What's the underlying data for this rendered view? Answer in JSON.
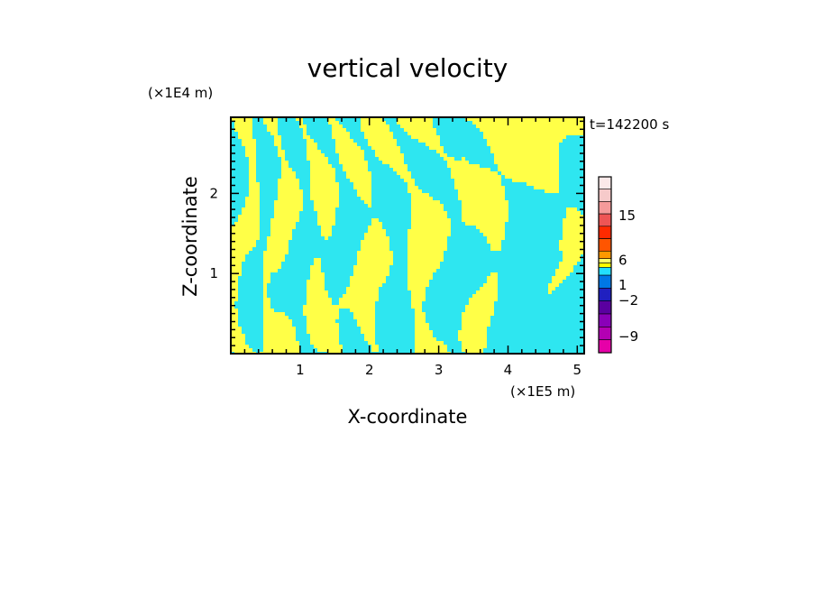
{
  "chart_data": {
    "type": "heatmap",
    "title": "vertical velocity",
    "xlabel": "X-coordinate",
    "ylabel": "Z-coordinate",
    "x_unit": "(×1E5 m)",
    "y_unit": "(×1E4 m)",
    "time_label": "t=142200 s",
    "xlim": [
      0,
      5.1
    ],
    "ylim": [
      0,
      2.95
    ],
    "x_ticks": [
      1,
      2,
      3,
      4,
      5
    ],
    "y_ticks": [
      1,
      2
    ],
    "field_colors": {
      "positive": "#ffff47",
      "negative": "#2ee6f0"
    },
    "colorbar": {
      "labels": [
        {
          "text": "15",
          "value": 15
        },
        {
          "text": "6",
          "value": 6
        },
        {
          "text": "1",
          "value": 1
        },
        {
          "text": "−2",
          "value": -2
        },
        {
          "text": "−9",
          "value": -9
        }
      ],
      "colors": [
        "#e600a8",
        "#b300b3",
        "#8a00b8",
        "#5a00a0",
        "#2020c0",
        "#0077e6",
        "#22dfff",
        "#ffff00",
        "#ffff66",
        "#ff9900",
        "#ff5500",
        "#ff2a00",
        "#ee5555",
        "#f59a9a",
        "#f6caca",
        "#fbe9e9"
      ]
    }
  }
}
